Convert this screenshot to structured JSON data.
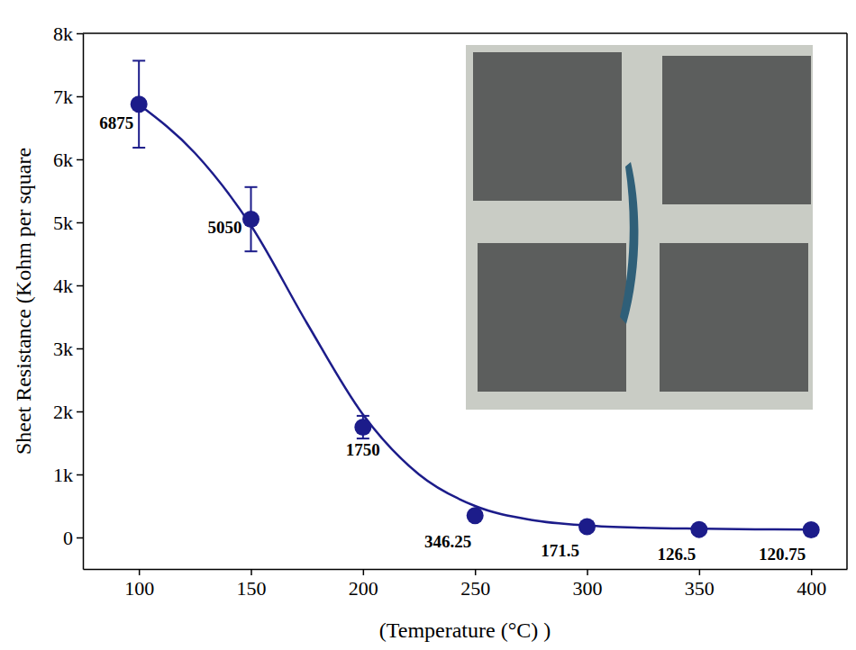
{
  "chart_data": {
    "type": "scatter",
    "x_label": "(Temperature (°C) )",
    "y_label": "Sheet Resistance (Kohm per square",
    "xlim": [
      75,
      416
    ],
    "xticks": [
      100,
      150,
      200,
      250,
      300,
      350,
      400
    ],
    "ylim": [
      -500,
      8000
    ],
    "yticks": [
      0,
      {
        "value": 1000,
        "label": "1k"
      },
      {
        "value": 2000,
        "label": "2k"
      },
      {
        "value": 3000,
        "label": "3k"
      },
      {
        "value": 4000,
        "label": "4k"
      },
      {
        "value": 5000,
        "label": "5k"
      },
      {
        "value": 6000,
        "label": "6k"
      },
      {
        "value": 7000,
        "label": "7k"
      },
      {
        "value": 8000,
        "label": "8k"
      }
    ],
    "grid": false,
    "series": [
      {
        "type": "scatter",
        "color": "#1c1c8a",
        "marker": "circle",
        "data_labels": true,
        "x": [
          100,
          150,
          200,
          250,
          300,
          350,
          400
        ],
        "values": [
          6875,
          5050,
          1750,
          346.25,
          171.5,
          126.5,
          120.75
        ],
        "error": [
          690,
          510,
          180,
          null,
          null,
          null,
          null
        ]
      },
      {
        "type": "line",
        "color": "#1c1c8a",
        "line_style": "solid",
        "x": [
          100,
          125,
          150,
          175,
          200,
          225,
          250,
          275,
          300,
          325,
          350,
          375,
          400
        ],
        "values": [
          6870,
          6100,
          4950,
          3400,
          1950,
          1000,
          500,
          280,
          190,
          155,
          140,
          130,
          125
        ]
      }
    ]
  }
}
